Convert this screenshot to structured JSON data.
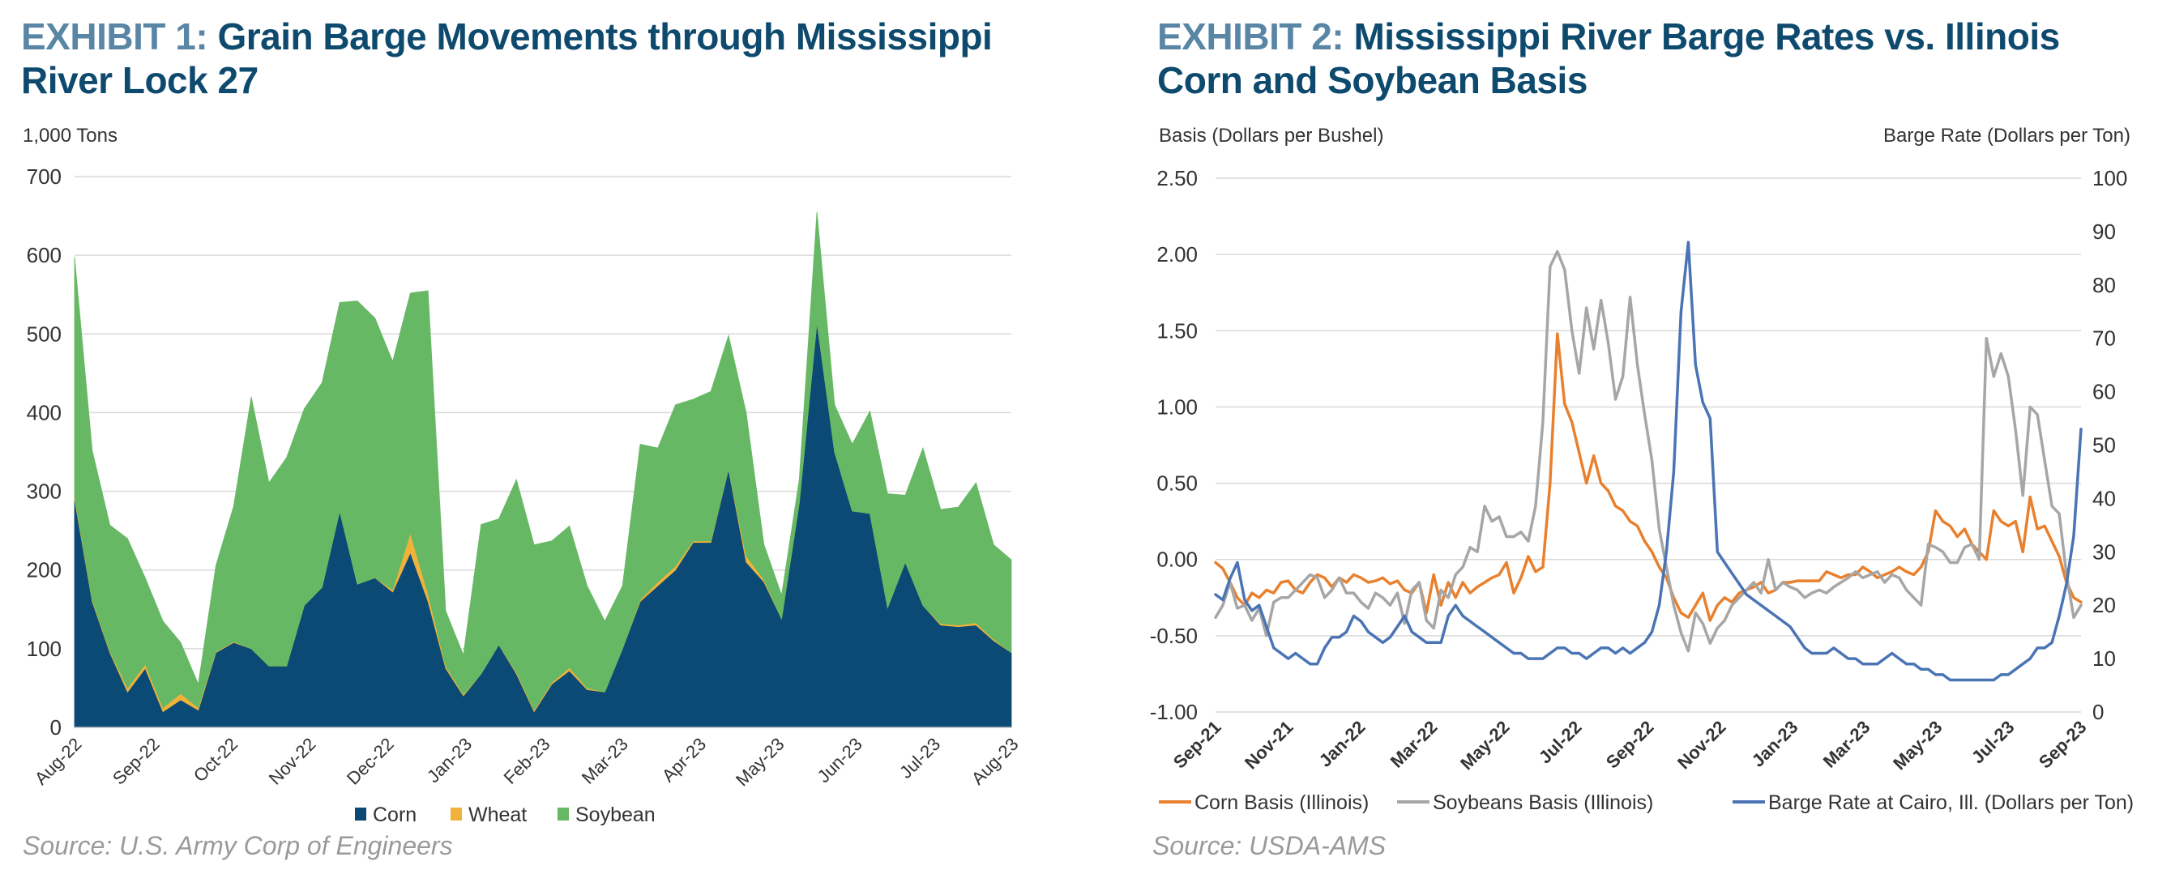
{
  "exhibit1": {
    "prefix": "EXHIBIT 1:",
    "title": "Grain Barge Movements through Mississippi River Lock 27",
    "y_unit": "1,000 Tons",
    "source": "Source: U.S. Army Corp of Engineers"
  },
  "exhibit2": {
    "prefix": "EXHIBIT 2:",
    "title": "Mississippi River Barge Rates vs. Illinois Corn and Soybean Basis",
    "left_unit": "Basis (Dollars per Bushel)",
    "right_unit": "Barge Rate (Dollars per Ton)",
    "source": "Source: USDA-AMS"
  },
  "chart_data": [
    {
      "type": "area",
      "stacked": true,
      "title": "Grain Barge Movements through Mississippi River Lock 27",
      "ylabel": "1,000 Tons",
      "ylim": [
        0,
        700
      ],
      "yticks": [
        0,
        100,
        200,
        300,
        400,
        500,
        600,
        700
      ],
      "xlabels": [
        "Aug-22",
        "Sep-22",
        "Oct-22",
        "Nov-22",
        "Dec-22",
        "Jan-23",
        "Feb-23",
        "Mar-23",
        "Apr-23",
        "May-23",
        "Jun-23",
        "Jul-23",
        "Aug-23"
      ],
      "series": [
        {
          "name": "Corn",
          "color": "#0a4a75",
          "values": [
            290,
            160,
            95,
            45,
            75,
            20,
            35,
            22,
            95,
            108,
            100,
            78,
            78,
            155,
            178,
            275,
            182,
            190,
            172,
            222,
            160,
            75,
            40,
            68,
            105,
            68,
            20,
            55,
            72,
            48,
            45,
            100,
            160,
            180,
            200,
            235,
            235,
            328,
            210,
            185,
            138,
            285,
            515,
            350,
            275,
            272,
            152,
            210,
            155,
            130,
            128,
            130,
            110,
            95
          ]
        },
        {
          "name": "Wheat",
          "color": "#f0b23a",
          "values": [
            3,
            2,
            2,
            5,
            5,
            5,
            8,
            3,
            1,
            1,
            0,
            0,
            0,
            0,
            0,
            0,
            0,
            0,
            3,
            25,
            10,
            3,
            2,
            0,
            0,
            2,
            2,
            2,
            4,
            2,
            0,
            0,
            2,
            5,
            5,
            2,
            2,
            0,
            8,
            3,
            0,
            0,
            0,
            0,
            0,
            0,
            0,
            0,
            0,
            2,
            2,
            3,
            2,
            0
          ]
        },
        {
          "name": "Soybean",
          "color": "#67b865",
          "values": [
            305,
            190,
            160,
            190,
            110,
            110,
            65,
            30,
            110,
            172,
            320,
            233,
            265,
            250,
            260,
            265,
            360,
            330,
            290,
            305,
            385,
            70,
            50,
            190,
            160,
            245,
            210,
            180,
            180,
            130,
            90,
            80,
            198,
            170,
            205,
            180,
            190,
            170,
            182,
            45,
            30,
            30,
            140,
            60,
            85,
            130,
            145,
            85,
            200,
            145,
            150,
            178,
            120,
            118
          ]
        }
      ]
    },
    {
      "type": "line",
      "title": "Mississippi River Barge Rates vs. Illinois Corn and Soybean Basis",
      "ylabel_left": "Basis (Dollars per Bushel)",
      "ylabel_right": "Barge Rate (Dollars per Ton)",
      "ylim_left": [
        -1.0,
        2.5
      ],
      "ylim_right": [
        0,
        100
      ],
      "yticks_left": [
        "2.50",
        "2.00",
        "1.50",
        "1.00",
        "0.50",
        "0.00",
        "-0.50",
        "-1.00"
      ],
      "yticks_right": [
        "100",
        "90",
        "80",
        "70",
        "60",
        "50",
        "40",
        "30",
        "20",
        "10",
        "0"
      ],
      "xlabels": [
        "Sep-21",
        "Nov-21",
        "Jan-22",
        "Mar-22",
        "May-22",
        "Jul-22",
        "Sep-22",
        "Nov-22",
        "Jan-23",
        "Mar-23",
        "May-23",
        "Jul-23",
        "Sep-23"
      ],
      "series": [
        {
          "name": "Corn Basis (Illinois)",
          "axis": "left",
          "color": "#e8802e",
          "values": [
            -0.02,
            -0.06,
            -0.15,
            -0.25,
            -0.3,
            -0.22,
            -0.25,
            -0.2,
            -0.22,
            -0.15,
            -0.14,
            -0.2,
            -0.22,
            -0.15,
            -0.1,
            -0.12,
            -0.18,
            -0.12,
            -0.15,
            -0.1,
            -0.12,
            -0.15,
            -0.14,
            -0.12,
            -0.16,
            -0.14,
            -0.2,
            -0.22,
            -0.15,
            -0.35,
            -0.1,
            -0.3,
            -0.15,
            -0.25,
            -0.15,
            -0.22,
            -0.18,
            -0.15,
            -0.12,
            -0.1,
            -0.02,
            -0.22,
            -0.12,
            0.02,
            -0.08,
            -0.05,
            0.5,
            1.48,
            1.02,
            0.9,
            0.7,
            0.5,
            0.68,
            0.5,
            0.45,
            0.35,
            0.32,
            0.25,
            0.22,
            0.12,
            0.05,
            -0.05,
            -0.12,
            -0.25,
            -0.35,
            -0.38,
            -0.3,
            -0.22,
            -0.4,
            -0.3,
            -0.25,
            -0.28,
            -0.22,
            -0.2,
            -0.18,
            -0.15,
            -0.22,
            -0.2,
            -0.15,
            -0.15,
            -0.14,
            -0.14,
            -0.14,
            -0.14,
            -0.08,
            -0.1,
            -0.12,
            -0.1,
            -0.1,
            -0.05,
            -0.08,
            -0.12,
            -0.1,
            -0.08,
            -0.05,
            -0.08,
            -0.1,
            -0.05,
            0.05,
            0.32,
            0.25,
            0.22,
            0.15,
            0.2,
            0.1,
            0.05,
            0.0,
            0.32,
            0.25,
            0.22,
            0.25,
            0.05,
            0.41,
            0.2,
            0.22,
            0.12,
            0.02,
            -0.15,
            -0.25,
            -0.28
          ]
        },
        {
          "name": "Soybeans Basis (Illinois)",
          "axis": "left",
          "color": "#a6a6a6",
          "values": [
            -0.38,
            -0.3,
            -0.15,
            -0.32,
            -0.3,
            -0.4,
            -0.32,
            -0.5,
            -0.28,
            -0.25,
            -0.25,
            -0.2,
            -0.15,
            -0.1,
            -0.12,
            -0.25,
            -0.2,
            -0.12,
            -0.22,
            -0.22,
            -0.28,
            -0.32,
            -0.22,
            -0.25,
            -0.3,
            -0.22,
            -0.42,
            -0.2,
            -0.15,
            -0.4,
            -0.45,
            -0.2,
            -0.25,
            -0.1,
            -0.05,
            0.08,
            0.05,
            0.35,
            0.25,
            0.28,
            0.15,
            0.15,
            0.18,
            0.12,
            0.35,
            0.9,
            1.92,
            2.02,
            1.9,
            1.5,
            1.22,
            1.65,
            1.38,
            1.7,
            1.42,
            1.05,
            1.2,
            1.72,
            1.28,
            0.95,
            0.65,
            0.2,
            -0.05,
            -0.3,
            -0.48,
            -0.6,
            -0.35,
            -0.42,
            -0.55,
            -0.45,
            -0.4,
            -0.3,
            -0.25,
            -0.2,
            -0.15,
            -0.22,
            0.0,
            -0.2,
            -0.15,
            -0.18,
            -0.2,
            -0.25,
            -0.22,
            -0.2,
            -0.22,
            -0.18,
            -0.15,
            -0.12,
            -0.08,
            -0.12,
            -0.1,
            -0.08,
            -0.15,
            -0.1,
            -0.12,
            -0.2,
            -0.25,
            -0.3,
            0.1,
            0.08,
            0.05,
            -0.02,
            -0.02,
            0.08,
            0.1,
            0.0,
            1.45,
            1.2,
            1.35,
            1.2,
            0.85,
            0.42,
            1.0,
            0.95,
            0.65,
            0.35,
            0.3,
            -0.1,
            -0.38,
            -0.3
          ]
        },
        {
          "name": "Barge Rate at Cairo, Ill. (Dollars per Ton)",
          "axis": "right",
          "color": "#4a74b4",
          "values": [
            22,
            21,
            25,
            28,
            21,
            19,
            20,
            16,
            12,
            11,
            10,
            11,
            10,
            9,
            9,
            12,
            14,
            14,
            15,
            18,
            17,
            15,
            14,
            13,
            14,
            16,
            18,
            15,
            14,
            13,
            13,
            13,
            18,
            20,
            18,
            17,
            16,
            15,
            14,
            13,
            12,
            11,
            11,
            10,
            10,
            10,
            11,
            12,
            12,
            11,
            11,
            10,
            11,
            12,
            12,
            11,
            12,
            11,
            12,
            13,
            15,
            20,
            30,
            45,
            75,
            88,
            65,
            58,
            55,
            30,
            28,
            26,
            24,
            22,
            21,
            20,
            19,
            18,
            17,
            16,
            14,
            12,
            11,
            11,
            11,
            12,
            11,
            10,
            10,
            9,
            9,
            9,
            10,
            11,
            10,
            9,
            9,
            8,
            8,
            7,
            7,
            6,
            6,
            6,
            6,
            6,
            6,
            6,
            7,
            7,
            8,
            9,
            10,
            12,
            12,
            13,
            18,
            24,
            33,
            53
          ]
        }
      ]
    }
  ]
}
